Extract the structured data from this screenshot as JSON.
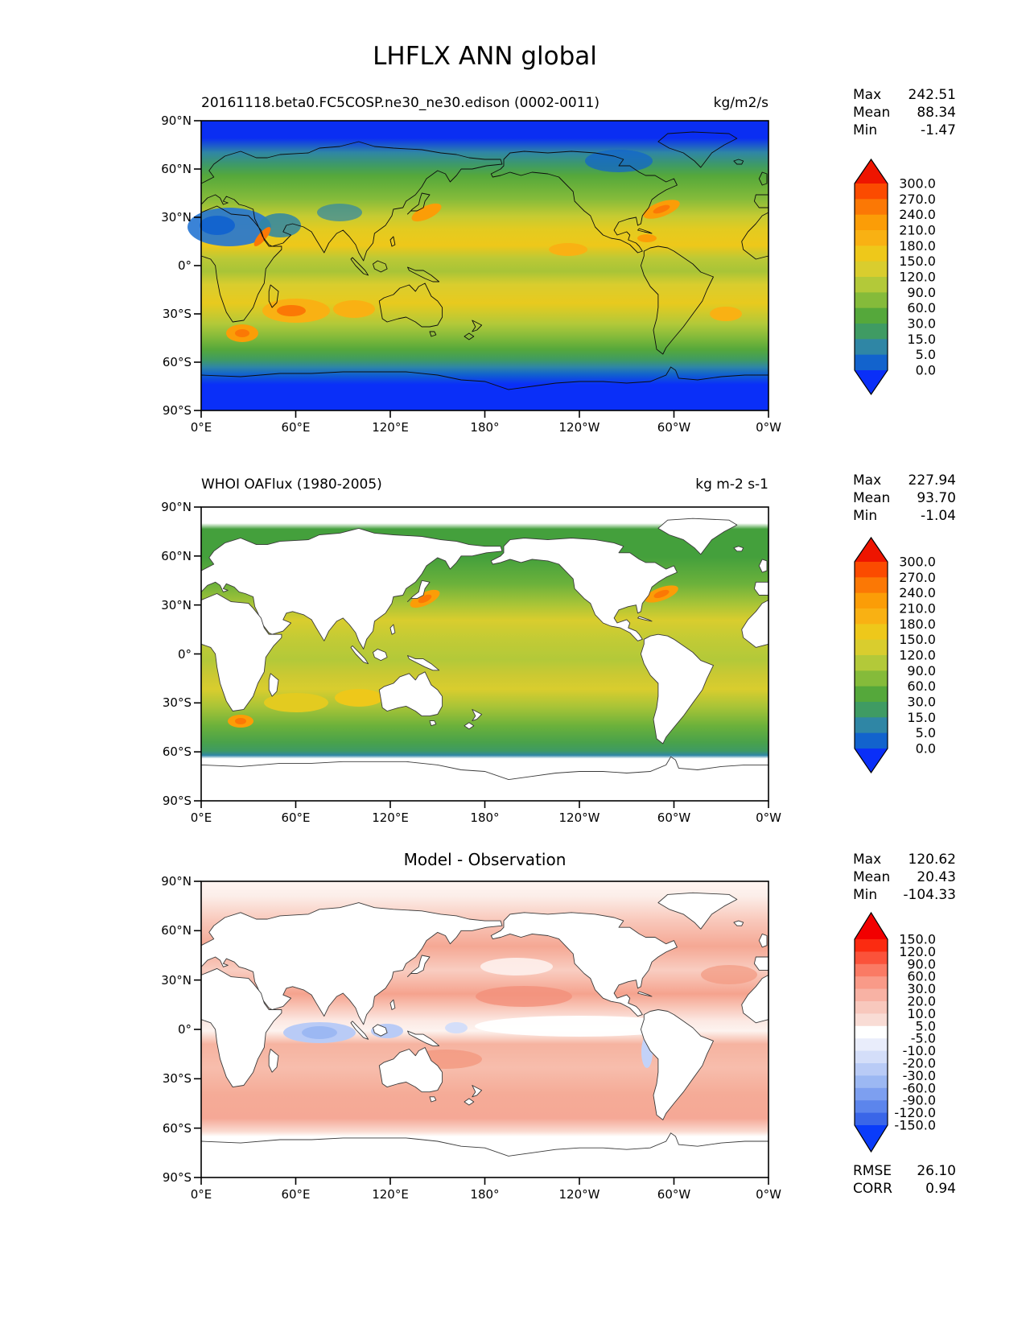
{
  "page_title": "LHFLX ANN global",
  "axes": {
    "lat_ticks": [
      "90°N",
      "60°N",
      "30°N",
      "0°",
      "30°S",
      "60°S",
      "90°S"
    ],
    "lon_ticks": [
      "0°E",
      "60°E",
      "120°E",
      "180°",
      "120°W",
      "60°W",
      "0°W"
    ],
    "lat_range_deg": [
      90,
      -90
    ],
    "lon_range_deg": [
      0,
      360
    ]
  },
  "chart_data": [
    {
      "type": "filled-contour-map",
      "panel": "model",
      "title": "20161118.beta0.FC5COSP.ne30_ne30.edison (0002-0011)",
      "units": "kg/m2/s",
      "projection": "equirectangular",
      "stats": {
        "rows": [
          {
            "label": "Max",
            "value": "242.51"
          },
          {
            "label": "Mean",
            "value": "88.34"
          },
          {
            "label": "Min",
            "value": "-1.47"
          }
        ]
      },
      "contour_levels": [
        0,
        5,
        15,
        30,
        60,
        90,
        120,
        150,
        180,
        210,
        240,
        270,
        300
      ],
      "colorbar": {
        "tick_labels": [
          "300.0",
          "270.0",
          "240.0",
          "210.0",
          "180.0",
          "150.0",
          "120.0",
          "90.0",
          "60.0",
          "30.0",
          "15.0",
          "5.0",
          "0.0"
        ],
        "segment_colors": [
          "#fb4b00",
          "#fb7805",
          "#fb9d07",
          "#f9b113",
          "#eec81a",
          "#d9cd2e",
          "#b3c939",
          "#85bb3a",
          "#55a83b",
          "#3f9b63",
          "#2f86a5",
          "#1263cd"
        ],
        "cap_top": "#ee1500",
        "cap_bottom": "#0a2ff8"
      }
    },
    {
      "type": "filled-contour-map",
      "panel": "observation",
      "title": "WHOI OAFlux (1980-2005)",
      "units": "kg m-2 s-1",
      "projection": "equirectangular",
      "stats": {
        "rows": [
          {
            "label": "Max",
            "value": "227.94"
          },
          {
            "label": "Mean",
            "value": "93.70"
          },
          {
            "label": "Min",
            "value": "-1.04"
          }
        ]
      },
      "contour_levels": [
        0,
        5,
        15,
        30,
        60,
        90,
        120,
        150,
        180,
        210,
        240,
        270,
        300
      ],
      "colorbar": {
        "tick_labels": [
          "300.0",
          "270.0",
          "240.0",
          "210.0",
          "180.0",
          "150.0",
          "120.0",
          "90.0",
          "60.0",
          "30.0",
          "15.0",
          "5.0",
          "0.0"
        ],
        "segment_colors": [
          "#fb4b00",
          "#fb7805",
          "#fb9d07",
          "#f9b113",
          "#eec81a",
          "#d9cd2e",
          "#b3c939",
          "#85bb3a",
          "#55a83b",
          "#3f9b63",
          "#2f86a5",
          "#1263cd"
        ],
        "cap_top": "#ee1500",
        "cap_bottom": "#0a2ff8"
      }
    },
    {
      "type": "filled-contour-map",
      "panel": "difference",
      "title": "Model - Observation",
      "units": "",
      "projection": "equirectangular",
      "stats": {
        "rows": [
          {
            "label": "Max",
            "value": "120.62"
          },
          {
            "label": "Mean",
            "value": "20.43"
          },
          {
            "label": "Min",
            "value": "-104.33"
          }
        ]
      },
      "metrics": [
        {
          "label": "RMSE",
          "value": "26.10"
        },
        {
          "label": "CORR",
          "value": "0.94"
        }
      ],
      "contour_levels": [
        -150,
        -120,
        -90,
        -60,
        -30,
        -20,
        -10,
        -5,
        5,
        10,
        20,
        30,
        60,
        90,
        120,
        150
      ],
      "colorbar": {
        "tick_labels": [
          "150.0",
          "120.0",
          "90.0",
          "60.0",
          "30.0",
          "20.0",
          "10.0",
          "5.0",
          "-5.0",
          "-10.0",
          "-20.0",
          "-30.0",
          "-60.0",
          "-90.0",
          "-120.0",
          "-150.0"
        ],
        "segment_colors": [
          "#fb2b10",
          "#fb523a",
          "#fa7a64",
          "#f99a88",
          "#f8b2a4",
          "#f8c8bd",
          "#f9dcd5",
          "#ffffff",
          "#e9edfb",
          "#d4def9",
          "#b9cbf6",
          "#9cb8f3",
          "#7d9ff0",
          "#5c85ec",
          "#3a66e8"
        ],
        "cap_top": "#f20000",
        "cap_bottom": "#0a3cfa"
      }
    }
  ]
}
